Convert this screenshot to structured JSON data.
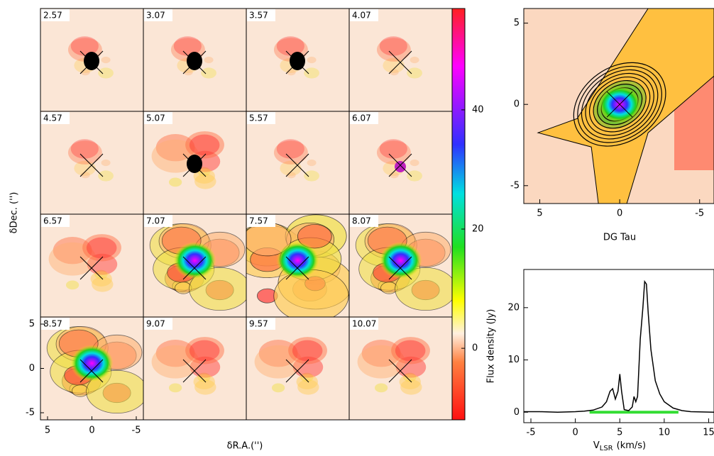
{
  "chart_data": [
    {
      "type": "channel-maps",
      "xlabel": "δR.A.('')",
      "ylabel": "δDec. ('')",
      "panels": [
        "2.57",
        "3.07",
        "3.57",
        "4.07",
        "4.57",
        "5.07",
        "5.57",
        "6.07",
        "6.57",
        "7.07",
        "7.57",
        "8.07",
        "8.57",
        "9.07",
        "9.57",
        "10.07"
      ],
      "xlim": [
        5.8,
        -5.8
      ],
      "ylim": [
        -5.8,
        5.8
      ],
      "xticks": [
        5,
        0,
        -5
      ],
      "yticks": [
        -5,
        0,
        5
      ],
      "colorbar": {
        "lim": [
          -12,
          57
        ],
        "ticks": [
          0,
          20,
          40
        ]
      }
    },
    {
      "type": "image",
      "title": "DG Tau",
      "xlim": [
        6,
        -5.9
      ],
      "ylim": [
        -6.1,
        5.9
      ],
      "xticks": [
        5,
        0,
        -5
      ],
      "yticks": [
        -5,
        0,
        5
      ]
    },
    {
      "type": "line",
      "xlabel": "V",
      "xlabel_sub": "LSR",
      "xlabel_unit": "(km/s)",
      "ylabel": "Flux density (Jy)",
      "xlim": [
        -5.8,
        15.6
      ],
      "ylim": [
        -2,
        27.3
      ],
      "xticks": [
        -5,
        0,
        5,
        10,
        15
      ],
      "yticks": [
        0,
        10,
        20
      ],
      "color": "#000000",
      "x": [
        -5.8,
        -4,
        -2,
        0,
        1,
        2,
        3,
        3.5,
        3.9,
        4.2,
        4.5,
        4.8,
        5.0,
        5.2,
        5.5,
        6,
        6.4,
        6.6,
        6.8,
        7,
        7.3,
        7.6,
        7.8,
        8,
        8.2,
        8.5,
        9,
        9.5,
        10,
        11,
        12,
        13,
        15.6
      ],
      "values": [
        0.1,
        0.1,
        0,
        0.1,
        0.2,
        0.4,
        1,
        2,
        4,
        4.5,
        2.5,
        4,
        7.3,
        4,
        0.5,
        0.3,
        1,
        3,
        2,
        3,
        14,
        20,
        25,
        24.5,
        19,
        12,
        6,
        3.5,
        2,
        0.8,
        0.3,
        0.1,
        0
      ],
      "band": {
        "range": [
          1.6,
          11.6
        ],
        "color": "#33dd33"
      }
    }
  ]
}
